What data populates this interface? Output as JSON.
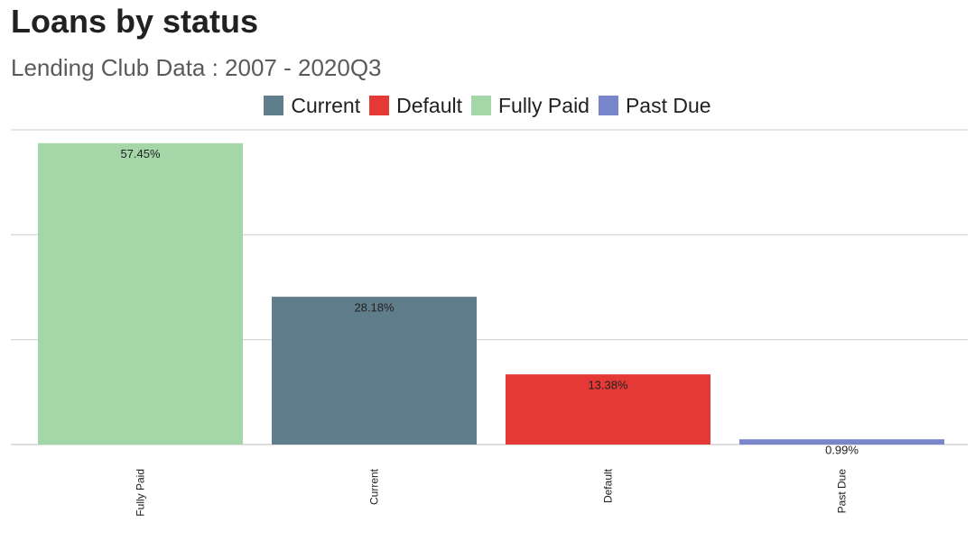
{
  "title": "Loans by status",
  "subtitle": "Lending Club Data : 2007 - 2020Q3",
  "legend": [
    {
      "label": "Current",
      "color": "#607d8b"
    },
    {
      "label": "Default",
      "color": "#e53935"
    },
    {
      "label": "Fully Paid",
      "color": "#a5d6a7"
    },
    {
      "label": "Past Due",
      "color": "#7986cb"
    }
  ],
  "chart_data": {
    "type": "bar",
    "categories": [
      "Fully Paid",
      "Current",
      "Default",
      "Past Due"
    ],
    "values": [
      57.45,
      28.18,
      13.38,
      0.99
    ],
    "value_labels": [
      "57.45%",
      "28.18%",
      "13.38%",
      "0.99%"
    ],
    "colors": [
      "#a5d6a7",
      "#607d8b",
      "#e53935",
      "#7986cb"
    ],
    "title": "Loans by status",
    "subtitle": "Lending Club Data : 2007 - 2020Q3",
    "xlabel": "",
    "ylabel": "",
    "ylim": [
      0,
      60
    ],
    "grid": true,
    "legend_position": "top-center",
    "x_tick_rotation": "vertical"
  }
}
